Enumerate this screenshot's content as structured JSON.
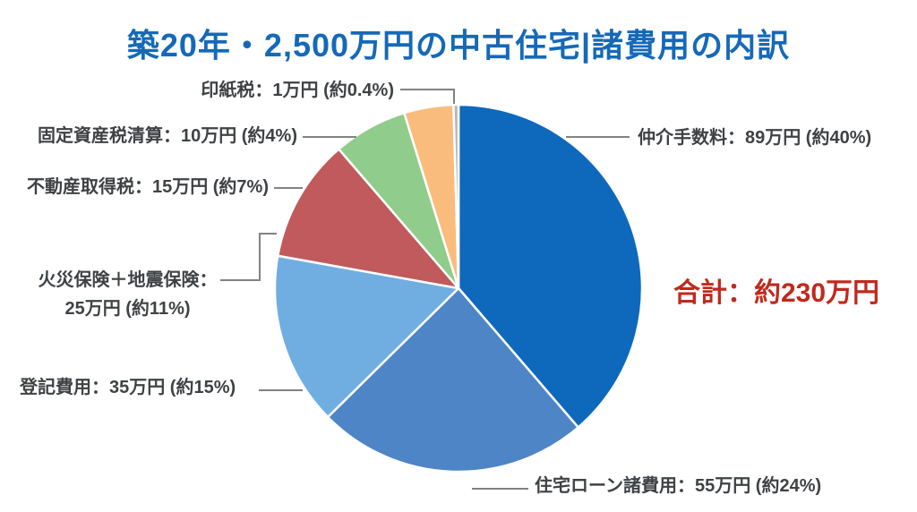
{
  "chart_data": {
    "type": "pie",
    "title": "築20年・2,500万円の中古住宅|諸費用の内訳",
    "unit": "万円",
    "total": {
      "label": "合計：約230万円",
      "value_man_yen": 230
    },
    "legend_position": "callout-labels",
    "start_angle": "12-oclock-clockwise",
    "slices": [
      {
        "id": "brokerage-fee",
        "name": "仲介手数料",
        "label": "仲介手数料：89万円 (約40%)",
        "value_man_yen": 89,
        "percent_approx": 40,
        "color": "#0e68bb"
      },
      {
        "id": "loan-costs",
        "name": "住宅ローン諸費用",
        "label": "住宅ローン諸費用：55万円 (約24%)",
        "value_man_yen": 55,
        "percent_approx": 24,
        "color": "#4d85c6"
      },
      {
        "id": "registration-fee",
        "name": "登記費用",
        "label": "登記費用：35万円 (約15%)",
        "value_man_yen": 35,
        "percent_approx": 15,
        "color": "#70aee2"
      },
      {
        "id": "fire-earthquake-insurance",
        "name": "火災保険＋地震保険",
        "label": "火災保険＋地震保険：25万円 (約11%)",
        "label_line1": "火災保険＋地震保険：",
        "label_line2": "25万円 (約11%)",
        "value_man_yen": 25,
        "percent_approx": 11,
        "color": "#c05a5c"
      },
      {
        "id": "acquisition-tax",
        "name": "不動産取得税",
        "label": "不動産取得税：15万円 (約7%)",
        "value_man_yen": 15,
        "percent_approx": 7,
        "color": "#90cc8b"
      },
      {
        "id": "property-tax-settlement",
        "name": "固定資産税清算",
        "label": "固定資産税清算：10万円 (約4%)",
        "value_man_yen": 10,
        "percent_approx": 4,
        "color": "#fabc7d"
      },
      {
        "id": "stamp-tax",
        "name": "印紙税",
        "label": "印紙税：1万円 (約0.4%)",
        "value_man_yen": 1,
        "percent_approx": 0.4,
        "color": "#b3b5b8"
      }
    ]
  },
  "colors": {
    "background": "#ffffff",
    "title_text": "#1569b8",
    "label_text": "#3f4245",
    "total_text": "#bf2a1e",
    "leader_line": "#828282",
    "slice_border": "#ffffff"
  }
}
